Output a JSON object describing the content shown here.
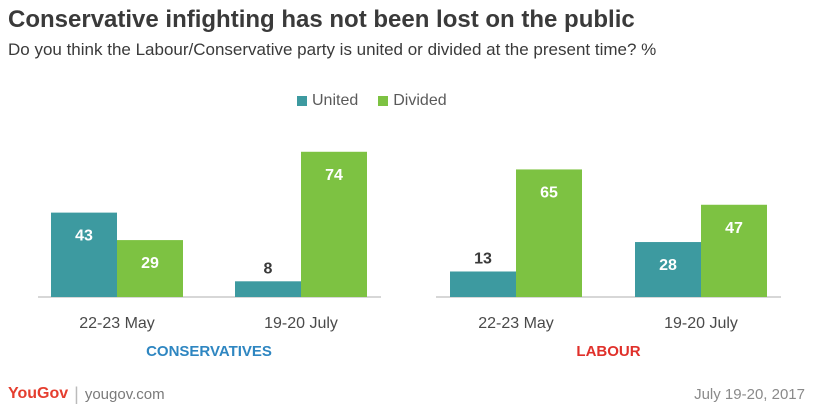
{
  "title": "Conservative infighting has not been lost on the public",
  "subtitle": "Do you think the Labour/Conservative party is united or divided at the present time? %",
  "chart_data": {
    "type": "bar",
    "series": [
      {
        "name": "United",
        "color": "#3d9aa0",
        "values": [
          43,
          8,
          13,
          28
        ]
      },
      {
        "name": "Divided",
        "color": "#7dc242",
        "values": [
          29,
          74,
          65,
          47
        ]
      }
    ],
    "categories": [
      "22-23 May",
      "19-20 July",
      "22-23 May",
      "19-20 July"
    ],
    "groups": [
      {
        "label": "CONSERVATIVES",
        "color": "#2e86c1",
        "categories": [
          0,
          1
        ]
      },
      {
        "label": "LABOUR",
        "color": "#e0302a",
        "categories": [
          2,
          3
        ]
      }
    ],
    "ylim": [
      0,
      80
    ],
    "grid": false,
    "legend": "top-center"
  },
  "footer": {
    "brand": "YouGov",
    "url": "yougov.com",
    "date": "July 19-20, 2017"
  }
}
